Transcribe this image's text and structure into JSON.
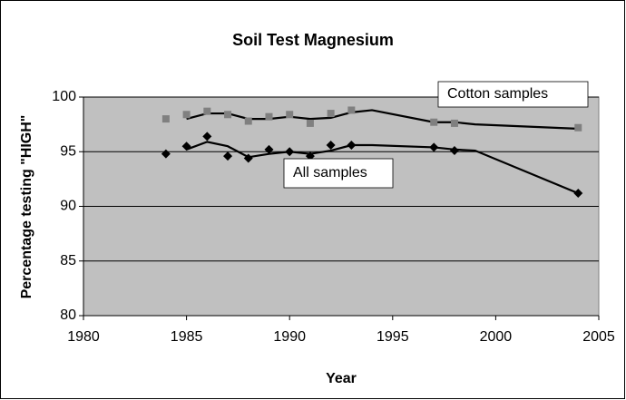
{
  "chart_data": {
    "type": "scatter",
    "title": "Soil Test Magnesium",
    "x_label": "Year",
    "y_label": "Percentage testing \"HIGH\"",
    "xlim": [
      1980,
      2005
    ],
    "xticks": [
      1980,
      1985,
      1990,
      1995,
      2000,
      2005
    ],
    "ylim": [
      80,
      100
    ],
    "yticks": [
      80,
      85,
      90,
      95,
      100
    ],
    "grid": true,
    "series": [
      {
        "name": "Cotton samples",
        "color": "#808080",
        "marker": "square",
        "x": [
          1984,
          1985,
          1986,
          1987,
          1988,
          1989,
          1990,
          1991,
          1992,
          1993,
          1997,
          1998,
          2004
        ],
        "values": [
          98.0,
          98.4,
          98.7,
          98.4,
          97.8,
          98.2,
          98.4,
          97.6,
          98.5,
          98.8,
          97.7,
          97.6,
          97.2
        ],
        "trend": {
          "x": [
            1985,
            1986,
            1987,
            1988,
            1989,
            1990,
            1991,
            1992,
            1993,
            1994,
            1997,
            1998,
            1999,
            2004
          ],
          "values": [
            98.0,
            98.5,
            98.5,
            98.0,
            98.0,
            98.2,
            98.0,
            98.1,
            98.6,
            98.8,
            97.7,
            97.7,
            97.5,
            97.1
          ]
        }
      },
      {
        "name": "All samples",
        "color": "#000000",
        "marker": "diamond",
        "x": [
          1984,
          1985,
          1986,
          1987,
          1988,
          1989,
          1990,
          1991,
          1992,
          1993,
          1997,
          1998,
          2004
        ],
        "values": [
          94.8,
          95.5,
          96.4,
          94.6,
          94.4,
          95.2,
          95.0,
          94.6,
          95.6,
          95.6,
          95.4,
          95.1,
          91.2
        ],
        "trend": {
          "x": [
            1985,
            1986,
            1987,
            1988,
            1989,
            1990,
            1991,
            1992,
            1993,
            1994,
            1997,
            1998,
            1999,
            2004
          ],
          "values": [
            95.2,
            95.9,
            95.5,
            94.5,
            94.8,
            95.0,
            94.8,
            95.1,
            95.6,
            95.6,
            95.4,
            95.2,
            95.1,
            91.2
          ]
        }
      }
    ]
  }
}
